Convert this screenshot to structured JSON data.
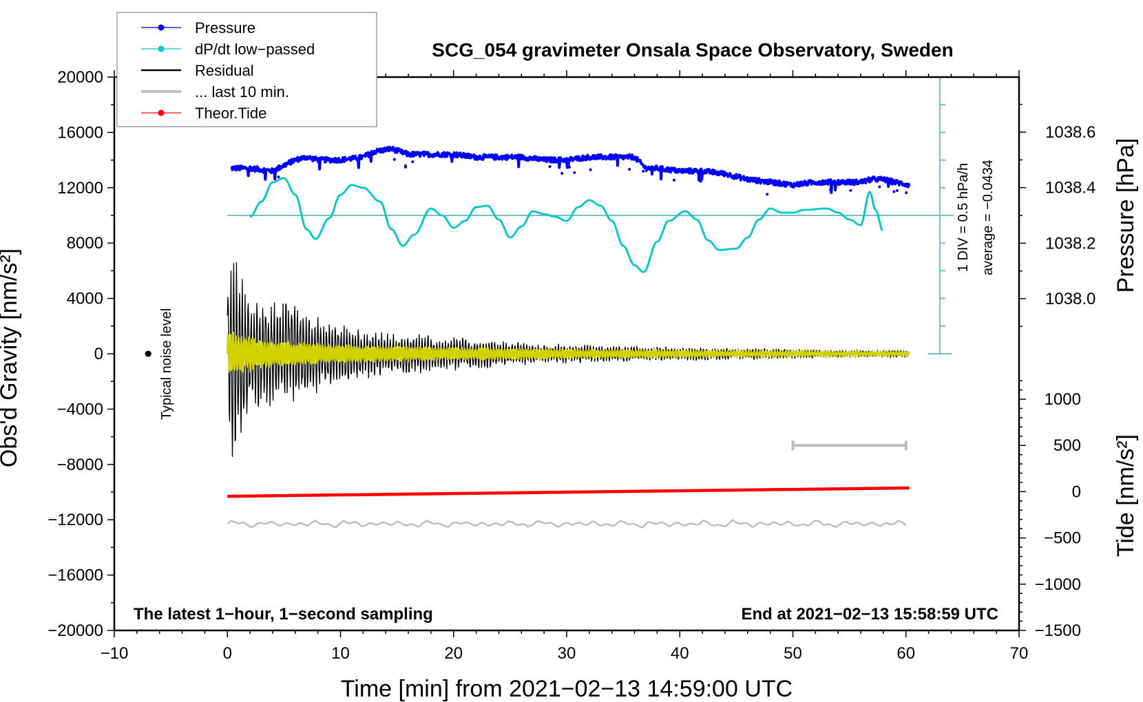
{
  "chart_data": {
    "type": "line",
    "title": "SCG_054 gravimeter Onsala Space Observatory, Sweden",
    "xlabel": "Time [min] from 2021−02−13 14:59:00 UTC",
    "ylabel_left": "Obs'd Gravity [nm/s²]",
    "ylabel_right_top": "Pressure [hPa]",
    "ylabel_right_bottom": "Tide [nm/s²]",
    "xlim": [
      -10,
      70
    ],
    "ylim_left": [
      -20000,
      20000
    ],
    "ylim_pressure": [
      1037.9,
      1038.8
    ],
    "ylim_tide": [
      -1500,
      1500
    ],
    "x_ticks": [
      "−10",
      "0",
      "10",
      "20",
      "30",
      "40",
      "50",
      "60",
      "70"
    ],
    "x_tick_values": [
      -10,
      0,
      10,
      20,
      30,
      40,
      50,
      60,
      70
    ],
    "y_left_ticks": [
      "20000",
      "16000",
      "12000",
      "8000",
      "4000",
      "0",
      "−4000",
      "−8000",
      "−12000",
      "−16000",
      "−20000"
    ],
    "y_left_tick_values": [
      20000,
      16000,
      12000,
      8000,
      4000,
      0,
      -4000,
      -8000,
      -12000,
      -16000,
      -20000
    ],
    "y_pressure_ticks": [
      "1038.6",
      "1038.4",
      "1038.2",
      "1038.0"
    ],
    "y_pressure_tick_values": [
      1038.6,
      1038.4,
      1038.2,
      1038.0
    ],
    "y_tide_ticks": [
      "1000",
      "500",
      "0",
      "−500",
      "−1000",
      "−1500"
    ],
    "y_tide_tick_values": [
      1000,
      500,
      0,
      -500,
      -1000,
      -1500
    ],
    "legend": {
      "position": "top-left",
      "entries": [
        {
          "label": "Pressure",
          "color": "#0000ff",
          "marker": true
        },
        {
          "label": "dP/dt low−passed",
          "color": "#00c8c8",
          "marker": true
        },
        {
          "label": "Residual",
          "color": "#000000",
          "marker": false
        },
        {
          "label": "... last 10 min.",
          "color": "#bebebe",
          "marker": false
        },
        {
          "label": "Theor.Tide",
          "color": "#ff0000",
          "marker": true
        }
      ]
    },
    "annotations": {
      "sampling_note": "The latest 1−hour, 1−second sampling",
      "end_note": "End at 2021−02−13 15:58:59 UTC",
      "div_note": "1 DIV = 0.5 hPa/h",
      "average_note": "average = −0.0434",
      "noise_label": "Typical noise level"
    },
    "series": [
      {
        "name": "Pressure",
        "axis": "pressure",
        "color": "#0000ff",
        "x": [
          0.3,
          2,
          4,
          6,
          7,
          8,
          10,
          12,
          13,
          14.5,
          16,
          18,
          20,
          22,
          24,
          26,
          28,
          30,
          32,
          34,
          36,
          37,
          38,
          40,
          42,
          44,
          46,
          48,
          50,
          52,
          54,
          56,
          57,
          58,
          59,
          60.3
        ],
        "values": [
          1038.47,
          1038.47,
          1038.46,
          1038.5,
          1038.51,
          1038.5,
          1038.5,
          1038.51,
          1038.53,
          1038.54,
          1038.52,
          1038.52,
          1038.52,
          1038.51,
          1038.51,
          1038.51,
          1038.5,
          1038.5,
          1038.51,
          1038.51,
          1038.51,
          1038.47,
          1038.47,
          1038.46,
          1038.46,
          1038.45,
          1038.43,
          1038.42,
          1038.41,
          1038.42,
          1038.42,
          1038.42,
          1038.43,
          1038.43,
          1038.42,
          1038.41
        ]
      },
      {
        "name": "dP/dt low-passed",
        "axis": "left",
        "color": "#00c8c8",
        "baseline": 10000,
        "x": [
          2,
          3,
          4,
          5,
          6,
          7,
          7.8,
          9,
          10,
          11,
          12,
          13.5,
          14.5,
          15.5,
          16.5,
          18,
          19,
          20,
          21,
          22,
          23,
          24,
          25,
          26,
          27,
          28,
          29,
          30,
          31,
          32,
          33,
          34,
          35,
          36,
          36.8,
          38,
          39,
          40.5,
          41.5,
          42.5,
          43.5,
          45,
          46,
          47,
          48,
          49,
          50,
          51,
          53,
          54,
          55,
          56,
          56.8,
          57.3,
          58
        ],
        "values": [
          9900,
          11000,
          12400,
          12700,
          11500,
          9000,
          8300,
          9800,
          11500,
          12200,
          12000,
          11000,
          9000,
          7800,
          8600,
          10500,
          10000,
          9100,
          9600,
          10600,
          10700,
          9700,
          8400,
          9200,
          10300,
          10100,
          9900,
          9600,
          10600,
          11100,
          10700,
          9600,
          7800,
          6400,
          5900,
          8100,
          9600,
          10300,
          9700,
          8200,
          7500,
          7600,
          8400,
          9700,
          10500,
          10200,
          10200,
          10400,
          10500,
          10200,
          9700,
          9300,
          11700,
          10400,
          8800
        ]
      },
      {
        "name": "Residual",
        "axis": "left",
        "color": "#000000",
        "description": "oscillating residual, decaying amplitude",
        "envelope_x": [
          0,
          0.5,
          2,
          5,
          10,
          15,
          20,
          25,
          30,
          35,
          40,
          45,
          50,
          55,
          60
        ],
        "envelope_values": [
          4500,
          8000,
          4000,
          3800,
          2300,
          1600,
          1300,
          900,
          700,
          600,
          500,
          450,
          350,
          250,
          250
        ]
      },
      {
        "name": "Residual low-passed (yellow)",
        "axis": "left",
        "color": "#d2d200",
        "envelope_x": [
          0,
          2,
          5,
          10,
          20,
          30,
          40,
          50,
          60
        ],
        "envelope_values": [
          1800,
          1400,
          1000,
          700,
          500,
          350,
          250,
          200,
          150
        ]
      },
      {
        "name": "... last 10 min.",
        "axis": "left",
        "color": "#bebebe",
        "baseline": -12300,
        "amplitude": 350,
        "x_range": [
          0,
          60
        ]
      },
      {
        "name": "Theor.Tide",
        "axis": "tide",
        "color": "#ff0000",
        "x": [
          0,
          60.3
        ],
        "values": [
          -50,
          40
        ]
      }
    ],
    "noise_level_marker": {
      "x": -7,
      "y": 0
    },
    "last_10min_bar": {
      "x": [
        50,
        60
      ],
      "tide_value": 500
    },
    "pressure_scale_bar": {
      "x": 63,
      "y_range": [
        0,
        20000
      ],
      "zero_line_y": 10000
    }
  }
}
